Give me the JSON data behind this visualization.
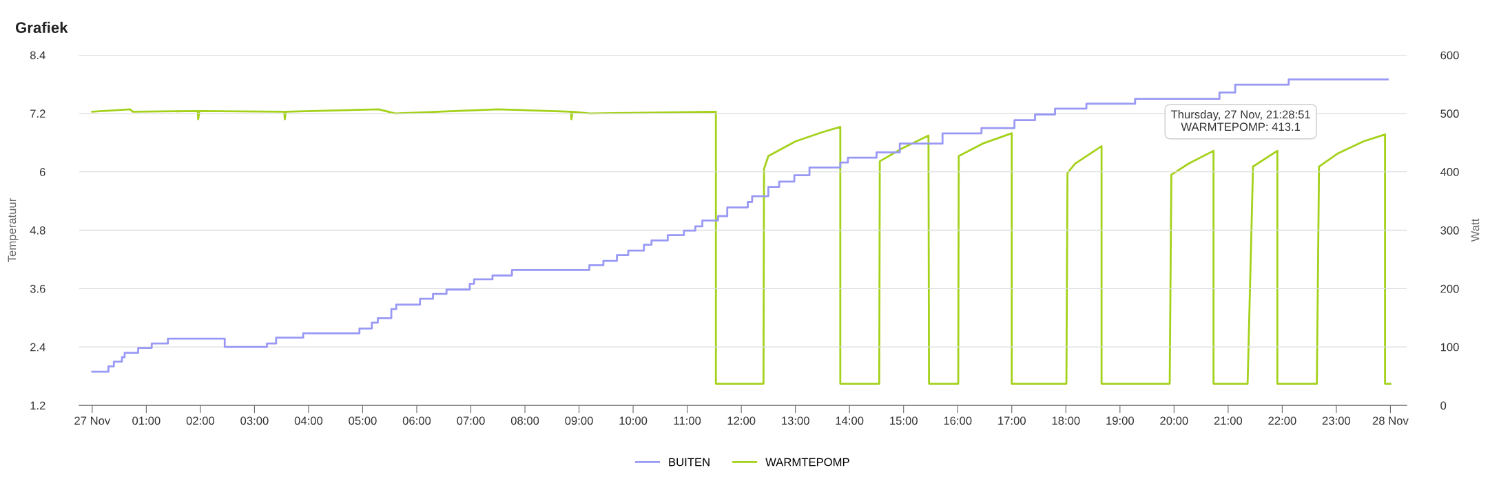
{
  "chart_data": {
    "type": "line",
    "title": "Grafiek",
    "ylabel": "Temperatuur",
    "y2label": "Watt",
    "xlim": [
      -0.24,
      24.3
    ],
    "xticks": [
      {
        "value": 0,
        "label": "27 Nov"
      },
      {
        "value": 1,
        "label": "01:00"
      },
      {
        "value": 2,
        "label": "02:00"
      },
      {
        "value": 3,
        "label": "03:00"
      },
      {
        "value": 4,
        "label": "04:00"
      },
      {
        "value": 5,
        "label": "05:00"
      },
      {
        "value": 6,
        "label": "06:00"
      },
      {
        "value": 7,
        "label": "07:00"
      },
      {
        "value": 8,
        "label": "08:00"
      },
      {
        "value": 9,
        "label": "09:00"
      },
      {
        "value": 10,
        "label": "10:00"
      },
      {
        "value": 11,
        "label": "11:00"
      },
      {
        "value": 12,
        "label": "12:00"
      },
      {
        "value": 13,
        "label": "13:00"
      },
      {
        "value": 14,
        "label": "14:00"
      },
      {
        "value": 15,
        "label": "15:00"
      },
      {
        "value": 16,
        "label": "16:00"
      },
      {
        "value": 17,
        "label": "17:00"
      },
      {
        "value": 18,
        "label": "18:00"
      },
      {
        "value": 19,
        "label": "19:00"
      },
      {
        "value": 20,
        "label": "20:00"
      },
      {
        "value": 21,
        "label": "21:00"
      },
      {
        "value": 22,
        "label": "22:00"
      },
      {
        "value": 23,
        "label": "23:00"
      },
      {
        "value": 24,
        "label": "28 Nov"
      }
    ],
    "ylim": [
      1.2,
      8.4
    ],
    "yticks": [
      1.2,
      2.4,
      3.6,
      4.8,
      6,
      7.2,
      8.4
    ],
    "y2lim": [
      0,
      600
    ],
    "y2ticks": [
      0,
      100,
      200,
      300,
      400,
      500,
      600
    ],
    "grid": "y",
    "legend": "bottom",
    "series": [
      {
        "name": "BUITEN",
        "type": "step",
        "color": "#9999f5",
        "x": [
          0,
          0.3,
          0.4,
          0.55,
          0.6,
          0.85,
          1.1,
          1.4,
          2.45,
          3.23,
          3.4,
          3.9,
          4.94,
          5.17,
          5.28,
          5.53,
          5.62,
          6.06,
          6.3,
          6.55,
          6.98,
          7.06,
          7.4,
          7.76,
          9.19,
          9.45,
          9.7,
          9.91,
          10.2,
          10.34,
          10.64,
          10.94,
          11.15,
          11.28,
          11.57,
          11.74,
          12.12,
          12.2,
          12.5,
          12.7,
          12.98,
          13.26,
          13.83,
          13.97,
          14.5,
          14.93,
          15.72,
          16.44,
          17.05,
          17.43,
          17.8,
          18.38,
          19.28,
          20.84,
          21.13,
          22.12,
          23.95
        ],
        "values": [
          1.89,
          2.0,
          2.1,
          2.19,
          2.28,
          2.38,
          2.47,
          2.57,
          2.4,
          2.47,
          2.59,
          2.68,
          2.78,
          2.9,
          2.99,
          3.18,
          3.27,
          3.39,
          3.49,
          3.58,
          3.7,
          3.79,
          3.87,
          3.98,
          4.08,
          4.17,
          4.29,
          4.38,
          4.5,
          4.59,
          4.7,
          4.79,
          4.88,
          5.0,
          5.09,
          5.27,
          5.38,
          5.5,
          5.69,
          5.8,
          5.93,
          6.09,
          6.19,
          6.29,
          6.4,
          6.58,
          6.79,
          6.9,
          7.06,
          7.18,
          7.3,
          7.4,
          7.5,
          7.63,
          7.79,
          7.9,
          7.9
        ]
      },
      {
        "name": "WARMTEPOMP",
        "axis": "y2",
        "color": "#a4d11a",
        "x": [
          0,
          0.7,
          0.75,
          1.95,
          1.96,
          1.98,
          3.55,
          3.56,
          3.58,
          5.3,
          5.6,
          7.5,
          8.85,
          8.86,
          8.88,
          9.2,
          11.53,
          11.53,
          12.41,
          12.42,
          12.5,
          13.0,
          13.5,
          13.83,
          13.83,
          14.55,
          14.56,
          14.97,
          15.46,
          15.47,
          16.01,
          16.02,
          16.48,
          17.0,
          17.0,
          18.01,
          18.03,
          18.17,
          18.66,
          18.66,
          19.92,
          19.95,
          20.27,
          20.73,
          20.73,
          21.36,
          21.46,
          21.91,
          21.91,
          22.64,
          22.68,
          23.02,
          23.5,
          23.9,
          23.9,
          24.0
        ],
        "values": [
          503,
          507,
          503,
          504,
          490,
          504,
          503,
          490,
          503,
          507,
          500,
          507,
          503,
          490,
          503,
          500,
          503,
          37,
          37,
          405,
          427,
          452,
          468,
          477,
          37,
          37,
          418,
          440,
          462,
          37,
          37,
          427,
          449,
          466,
          37,
          37,
          398,
          414,
          444,
          37,
          37,
          395,
          414,
          436,
          37,
          37,
          409,
          436,
          37,
          37,
          409,
          431,
          452,
          464,
          37,
          37
        ]
      }
    ],
    "annotations": [
      "Thursday, 27 Nov, 21:28:51\nWARMTEPOMP: 413.1"
    ]
  }
}
